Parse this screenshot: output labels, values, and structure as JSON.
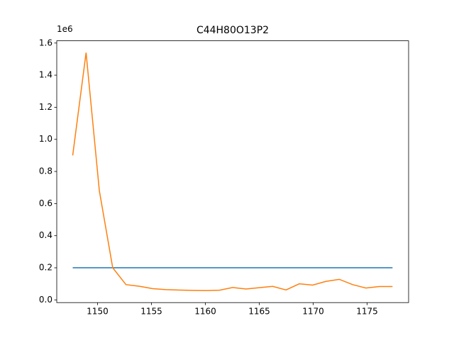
{
  "chart_data": {
    "type": "line",
    "title": "C44H80O13P2",
    "y_offset_label": "1e6",
    "xlim": [
      1146.22,
      1178.85
    ],
    "xticks": [
      1150,
      1155,
      1160,
      1165,
      1170,
      1175
    ],
    "ylim": [
      -17000,
      1614000
    ],
    "yticks": [
      {
        "value": 0,
        "label": "0.0"
      },
      {
        "value": 200000,
        "label": "0.2"
      },
      {
        "value": 400000,
        "label": "0.4"
      },
      {
        "value": 600000,
        "label": "0.6"
      },
      {
        "value": 800000,
        "label": "0.8"
      },
      {
        "value": 1000000,
        "label": "1.0"
      },
      {
        "value": 1200000,
        "label": "1.2"
      },
      {
        "value": 1400000,
        "label": "1.4"
      },
      {
        "value": 1600000,
        "label": "1.6"
      }
    ],
    "series": [
      {
        "color": "#1f77b4",
        "x": [
          1147.7,
          1177.36
        ],
        "values": [
          200000,
          200000
        ]
      },
      {
        "color": "#ff7f0e",
        "x": [
          1147.7,
          1148.94,
          1150.17,
          1151.41,
          1152.64,
          1153.88,
          1155.12,
          1156.35,
          1157.59,
          1158.82,
          1160.06,
          1161.3,
          1162.53,
          1163.77,
          1165.0,
          1166.24,
          1167.48,
          1168.71,
          1169.95,
          1171.18,
          1172.42,
          1173.66,
          1174.89,
          1176.13,
          1177.36
        ],
        "values": [
          900000,
          1540000,
          680000,
          200000,
          95000,
          85000,
          70000,
          64000,
          61000,
          59000,
          58000,
          60000,
          77000,
          68000,
          76000,
          84000,
          62000,
          100000,
          92000,
          115000,
          128000,
          95000,
          74000,
          83000,
          83000
        ]
      }
    ]
  }
}
